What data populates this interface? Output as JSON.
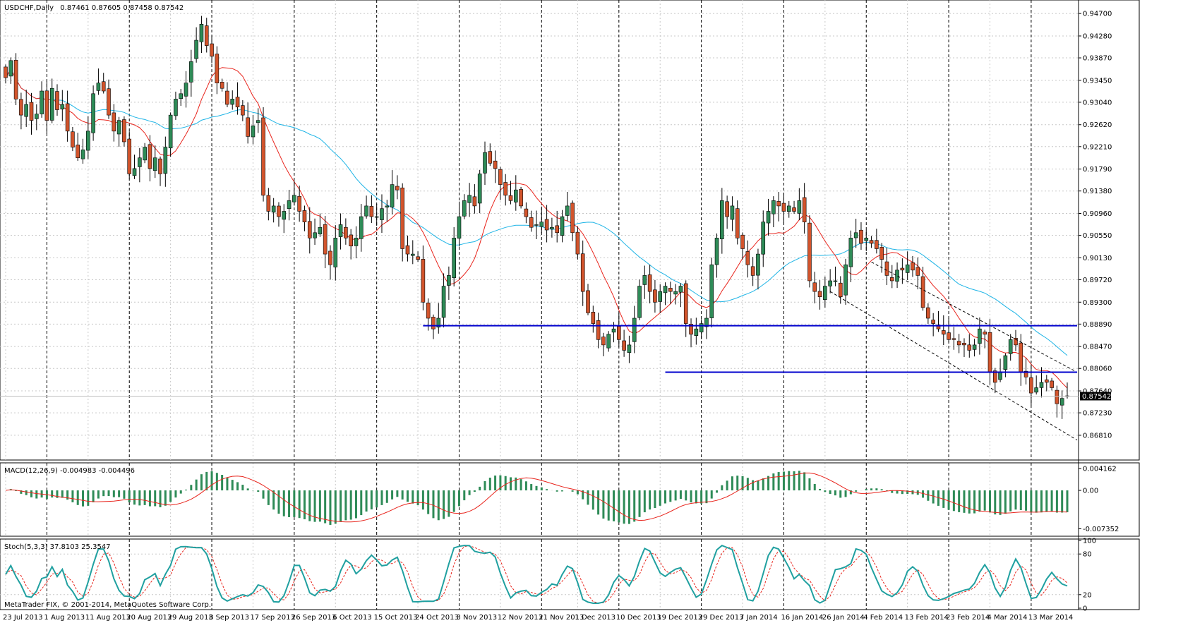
{
  "window": {
    "symbol_title": "USDCHF,Daily",
    "ohlc": "0.87461 0.87605 0.87458 0.87542",
    "copyright": "MetaTrader FIX, © 2001-2014, MetaQuotes Software Corp."
  },
  "colors": {
    "bull": "#2e8b57",
    "bear": "#d2542c",
    "ma_fast": "#e8241c",
    "ma_slow": "#1eb4e6",
    "support": "#0000cd",
    "macd_hist": "#2e8b57",
    "macd_signal": "#e8241c",
    "stoch_main": "#20a0a0",
    "stoch_signal": "#e8241c",
    "price_tag_bg": "#000000",
    "price_tag_fg": "#ffffff"
  },
  "chart_data": [
    {
      "type": "candlestick",
      "title": "USDCHF,Daily",
      "ylim": [
        0.864,
        0.949
      ],
      "y_ticks": [
        "0.94700",
        "0.94280",
        "0.93870",
        "0.93450",
        "0.93040",
        "0.92620",
        "0.92210",
        "0.91790",
        "0.91380",
        "0.90960",
        "0.90550",
        "0.90130",
        "0.89720",
        "0.89300",
        "0.88890",
        "0.88470",
        "0.88060",
        "0.87640",
        "0.87230",
        "0.86810"
      ],
      "current_price": "0.87542",
      "x_ticks": [
        "23 Jul 2013",
        "1 Aug 2013",
        "11 Aug 2013",
        "20 Aug 2013",
        "29 Aug 2013",
        "8 Sep 2013",
        "17 Sep 2013",
        "26 Sep 2013",
        "6 Oct 2013",
        "15 Oct 2013",
        "24 Oct 2013",
        "3 Nov 2013",
        "12 Nov 2013",
        "21 Nov 2013",
        "1 Dec 2013",
        "10 Dec 2013",
        "19 Dec 2013",
        "29 Dec 2013",
        "7 Jan 2014",
        "16 Jan 2014",
        "26 Jan 2014",
        "4 Feb 2014",
        "13 Feb 2014",
        "23 Feb 2014",
        "4 Mar 2014",
        "13 Mar 2014"
      ],
      "close_series": [
        0.935,
        0.9382,
        0.931,
        0.928,
        0.93,
        0.927,
        0.9282,
        0.9325,
        0.927,
        0.933,
        0.929,
        0.93,
        0.925,
        0.922,
        0.92,
        0.9215,
        0.925,
        0.932,
        0.934,
        0.9325,
        0.928,
        0.925,
        0.927,
        0.923,
        0.917,
        0.918,
        0.92,
        0.922,
        0.918,
        0.92,
        0.917,
        0.922,
        0.928,
        0.931,
        0.932,
        0.934,
        0.938,
        0.942,
        0.945,
        0.941,
        0.939,
        0.934,
        0.933,
        0.93,
        0.931,
        0.9295,
        0.928,
        0.924,
        0.926,
        0.927,
        0.913,
        0.91,
        0.911,
        0.909,
        0.91,
        0.912,
        0.913,
        0.91,
        0.908,
        0.905,
        0.906,
        0.907,
        0.902,
        0.9,
        0.905,
        0.9075,
        0.905,
        0.9035,
        0.905,
        0.909,
        0.911,
        0.909,
        0.909,
        0.9105,
        0.911,
        0.915,
        0.914,
        0.903,
        0.902,
        0.902,
        0.901,
        0.893,
        0.89,
        0.888,
        0.89,
        0.896,
        0.898,
        0.905,
        0.909,
        0.912,
        0.913,
        0.911,
        0.917,
        0.921,
        0.919,
        0.918,
        0.915,
        0.913,
        0.912,
        0.914,
        0.911,
        0.909,
        0.907,
        0.9075,
        0.908,
        0.9065,
        0.907,
        0.906,
        0.909,
        0.911,
        0.906,
        0.902,
        0.895,
        0.891,
        0.889,
        0.886,
        0.885,
        0.887,
        0.888,
        0.886,
        0.884,
        0.885,
        0.89,
        0.896,
        0.898,
        0.895,
        0.893,
        0.895,
        0.896,
        0.895,
        0.895,
        0.896,
        0.889,
        0.887,
        0.888,
        0.889,
        0.89,
        0.9,
        0.905,
        0.912,
        0.909,
        0.911,
        0.905,
        0.903,
        0.9,
        0.898,
        0.902,
        0.908,
        0.91,
        0.912,
        0.911,
        0.91,
        0.911,
        0.91,
        0.912,
        0.908,
        0.897,
        0.895,
        0.894,
        0.896,
        0.897,
        0.897,
        0.894,
        0.9,
        0.905,
        0.906,
        0.904,
        0.905,
        0.904,
        0.903,
        0.901,
        0.898,
        0.897,
        0.899,
        0.899,
        0.9,
        0.899,
        0.898,
        0.892,
        0.89,
        0.889,
        0.888,
        0.887,
        0.886,
        0.886,
        0.885,
        0.885,
        0.884,
        0.885,
        0.888,
        0.887,
        0.88,
        0.878,
        0.88,
        0.883,
        0.886,
        0.885,
        0.88,
        0.879,
        0.876,
        0.877,
        0.878,
        0.878,
        0.877,
        0.874,
        0.875,
        0.8754
      ],
      "support_lines": [
        0.8886,
        0.8799
      ],
      "series_ma_fast_label": "",
      "series_ma_slow_label": ""
    },
    {
      "type": "bar",
      "title": "MACD(12,26,9) -0.004983 -0.004496",
      "ylim": [
        -0.0085,
        0.005
      ],
      "y_ticks": [
        "0.004162",
        "0.00",
        "-0.007352"
      ]
    },
    {
      "type": "line",
      "title": "Stoch(5,3,3) 37.8103 25.3547",
      "ylim": [
        0,
        100
      ],
      "y_ticks": [
        "100",
        "80",
        "20",
        "0"
      ]
    }
  ]
}
